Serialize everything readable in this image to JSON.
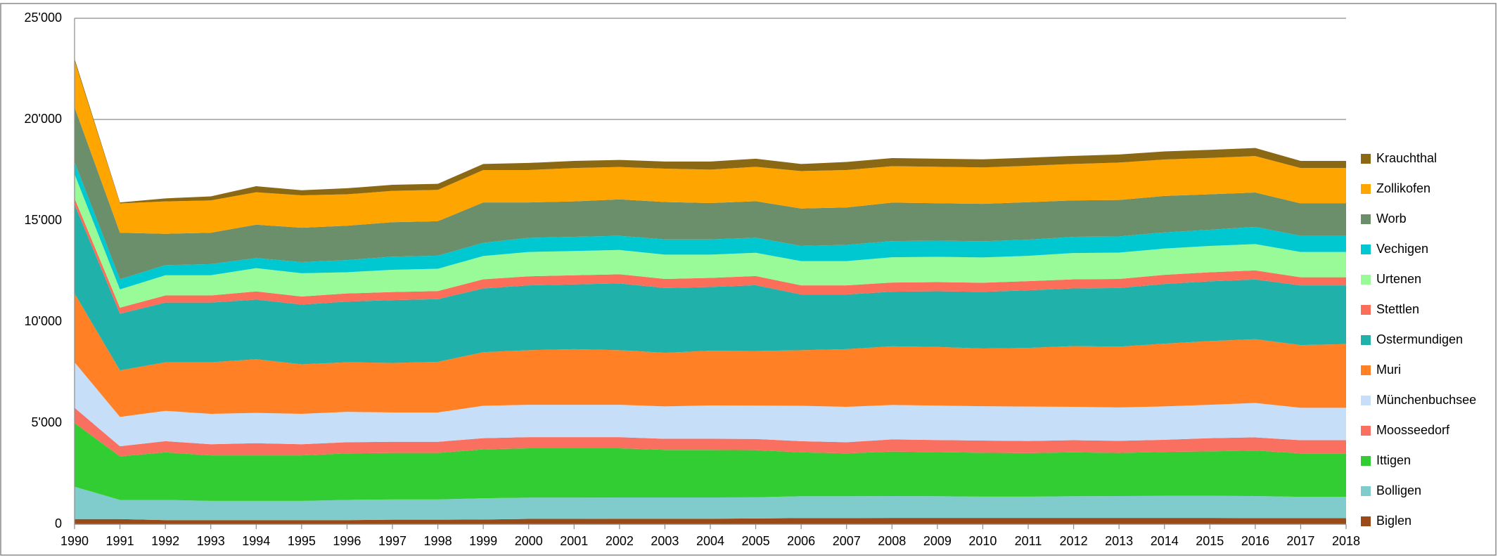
{
  "chart_data": {
    "type": "stacked_area",
    "categories": [
      "1990",
      "1991",
      "1992",
      "1993",
      "1994",
      "1995",
      "1996",
      "1997",
      "1998",
      "1999",
      "2000",
      "2001",
      "2002",
      "2003",
      "2004",
      "2005",
      "2006",
      "2007",
      "2008",
      "2009",
      "2010",
      "2011",
      "2012",
      "2013",
      "2014",
      "2015",
      "2016",
      "2017",
      "2018"
    ],
    "ylim": [
      0,
      25000
    ],
    "yticks": [
      {
        "value": 0,
        "label": "0"
      },
      {
        "value": 5000,
        "label": "5'000"
      },
      {
        "value": 10000,
        "label": "10'000"
      },
      {
        "value": 15000,
        "label": "15'000"
      },
      {
        "value": 20000,
        "label": "20'000"
      },
      {
        "value": 25000,
        "label": "25'000"
      }
    ],
    "grid": true,
    "legend": "right",
    "series": [
      {
        "name": "Biglen",
        "color": "#9a4a16",
        "values": [
          250,
          250,
          200,
          200,
          200,
          200,
          200,
          220,
          220,
          230,
          260,
          260,
          270,
          270,
          270,
          280,
          300,
          300,
          310,
          310,
          310,
          310,
          310,
          310,
          310,
          310,
          300,
          300,
          300
        ]
      },
      {
        "name": "Bolligen",
        "color": "#80cccc",
        "values": [
          1600,
          950,
          1000,
          950,
          950,
          950,
          1000,
          1000,
          1000,
          1050,
          1050,
          1050,
          1050,
          1050,
          1050,
          1050,
          1080,
          1080,
          1080,
          1070,
          1050,
          1050,
          1070,
          1080,
          1090,
          1090,
          1090,
          1050,
          1050
        ]
      },
      {
        "name": "Ittigen",
        "color": "#32cd32",
        "values": [
          3150,
          2150,
          2350,
          2250,
          2250,
          2250,
          2300,
          2300,
          2300,
          2420,
          2440,
          2440,
          2430,
          2350,
          2350,
          2330,
          2170,
          2120,
          2200,
          2180,
          2170,
          2150,
          2170,
          2130,
          2170,
          2200,
          2250,
          2150,
          2150
        ]
      },
      {
        "name": "Moosseedorf",
        "color": "#fa7060",
        "values": [
          750,
          500,
          550,
          550,
          600,
          550,
          550,
          550,
          550,
          550,
          550,
          550,
          550,
          550,
          550,
          550,
          550,
          550,
          600,
          600,
          600,
          600,
          600,
          600,
          600,
          650,
          650,
          650,
          650
        ]
      },
      {
        "name": "Münchenbuchsee",
        "color": "#c6def8",
        "values": [
          2250,
          1450,
          1500,
          1500,
          1500,
          1500,
          1500,
          1450,
          1450,
          1600,
          1600,
          1600,
          1600,
          1600,
          1650,
          1650,
          1750,
          1750,
          1700,
          1700,
          1700,
          1700,
          1650,
          1650,
          1650,
          1650,
          1700,
          1600,
          1600
        ]
      },
      {
        "name": "Muri",
        "color": "#ff8025",
        "values": [
          3400,
          2300,
          2400,
          2550,
          2650,
          2450,
          2450,
          2450,
          2500,
          2650,
          2700,
          2750,
          2700,
          2650,
          2700,
          2700,
          2750,
          2850,
          2900,
          2900,
          2850,
          2900,
          3000,
          3000,
          3100,
          3150,
          3150,
          3100,
          3150
        ]
      },
      {
        "name": "Ostermundigen",
        "color": "#20b2aa",
        "values": [
          4400,
          2800,
          2950,
          2950,
          2950,
          2950,
          3000,
          3100,
          3100,
          3150,
          3200,
          3200,
          3300,
          3200,
          3150,
          3250,
          2750,
          2700,
          2700,
          2750,
          2800,
          2850,
          2850,
          2900,
          2950,
          2950,
          2950,
          2950,
          2900
        ]
      },
      {
        "name": "Stettlen",
        "color": "#fa6e5a",
        "values": [
          300,
          300,
          350,
          350,
          400,
          400,
          400,
          400,
          400,
          450,
          450,
          450,
          450,
          450,
          450,
          450,
          450,
          450,
          450,
          450,
          450,
          450,
          450,
          450,
          450,
          450,
          450,
          400,
          400
        ]
      },
      {
        "name": "Urtenen",
        "color": "#98fb98",
        "values": [
          1200,
          900,
          1000,
          1000,
          1150,
          1150,
          1050,
          1100,
          1100,
          1150,
          1200,
          1200,
          1200,
          1200,
          1150,
          1150,
          1200,
          1200,
          1250,
          1250,
          1250,
          1250,
          1300,
          1300,
          1300,
          1300,
          1300,
          1250,
          1250
        ]
      },
      {
        "name": "Vechigen",
        "color": "#00c8d0",
        "values": [
          600,
          500,
          500,
          550,
          500,
          550,
          600,
          650,
          650,
          650,
          700,
          700,
          700,
          750,
          750,
          750,
          750,
          800,
          800,
          800,
          800,
          800,
          800,
          800,
          800,
          800,
          850,
          800,
          800
        ]
      },
      {
        "name": "Worb",
        "color": "#6b8e6b",
        "values": [
          2700,
          2300,
          1550,
          1550,
          1650,
          1700,
          1700,
          1700,
          1700,
          2000,
          1750,
          1750,
          1800,
          1850,
          1800,
          1800,
          1850,
          1850,
          1900,
          1850,
          1850,
          1850,
          1800,
          1800,
          1800,
          1750,
          1700,
          1600,
          1600
        ]
      },
      {
        "name": "Zollikofen",
        "color": "#ffa500",
        "values": [
          2300,
          1450,
          1600,
          1600,
          1600,
          1600,
          1550,
          1550,
          1550,
          1600,
          1600,
          1650,
          1600,
          1650,
          1650,
          1700,
          1850,
          1850,
          1800,
          1800,
          1800,
          1800,
          1800,
          1850,
          1800,
          1800,
          1800,
          1750,
          1750
        ]
      },
      {
        "name": "Krauchthal",
        "color": "#8b6914",
        "values": [
          100,
          50,
          150,
          200,
          300,
          250,
          300,
          300,
          300,
          300,
          350,
          350,
          350,
          350,
          400,
          400,
          350,
          400,
          400,
          400,
          400,
          400,
          400,
          400,
          400,
          400,
          400,
          350,
          350
        ]
      }
    ]
  }
}
